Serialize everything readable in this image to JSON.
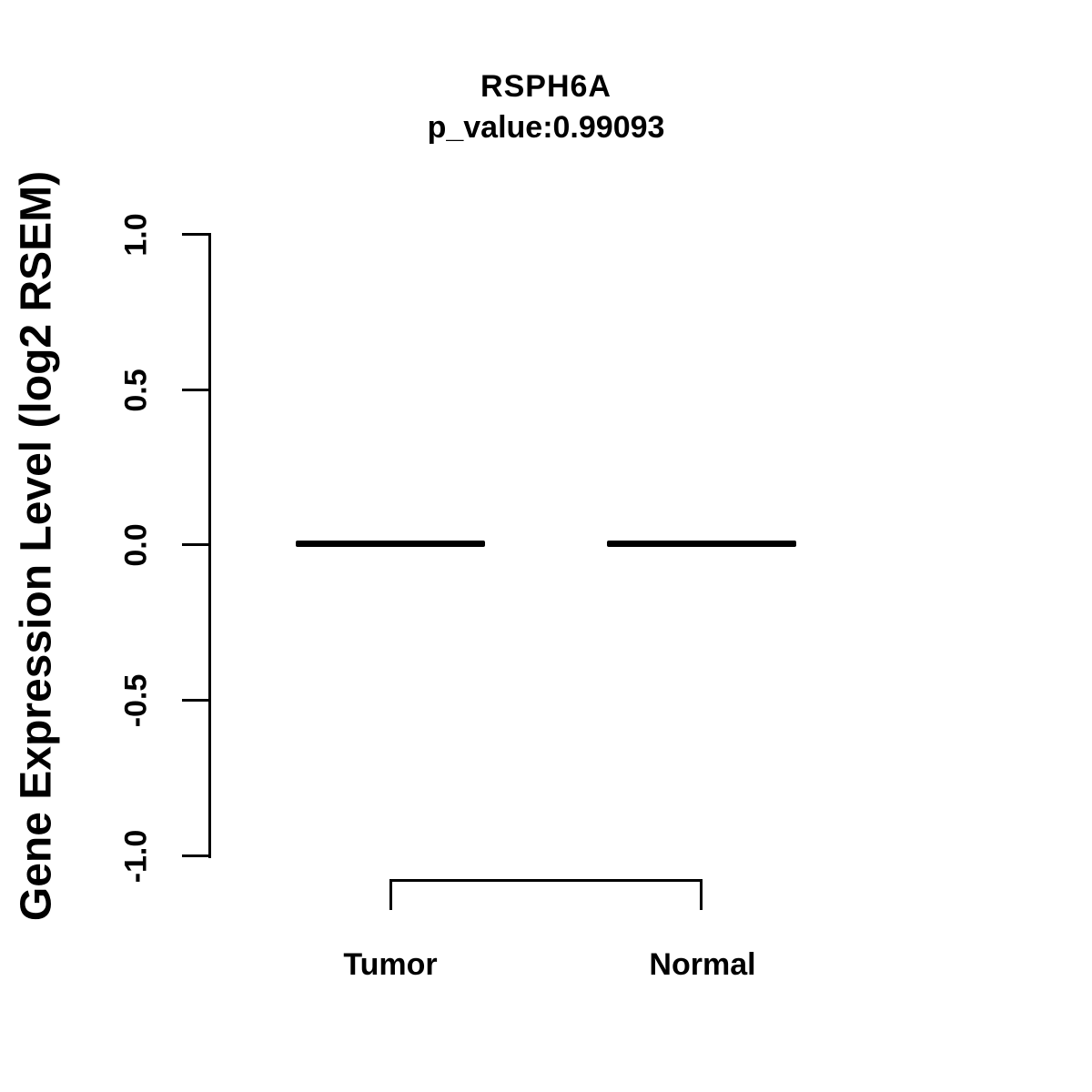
{
  "title": "RSPH6A",
  "subtitle": "p_value:0.99093",
  "y_axis": {
    "label": "Gene Expression Level (log2 RSEM)",
    "tick_labels": [
      "1.0",
      "0.5",
      "0.0",
      "-0.5",
      "-1.0"
    ]
  },
  "x_axis": {
    "group_labels": [
      "Tumor",
      "Normal"
    ]
  },
  "colors": {
    "foreground": "#000000",
    "background": "#ffffff"
  },
  "chart_data": {
    "type": "boxplot",
    "title": "RSPH6A",
    "subtitle": "p_value:0.99093",
    "xlabel": "",
    "ylabel": "Gene Expression Level (log2 RSEM)",
    "categories": [
      "Tumor",
      "Normal"
    ],
    "series": [
      {
        "name": "Tumor",
        "median": 0.0,
        "q1": 0.0,
        "q3": 0.0,
        "whisker_low": 0.0,
        "whisker_high": 0.0
      },
      {
        "name": "Normal",
        "median": 0.0,
        "q1": 0.0,
        "q3": 0.0,
        "whisker_low": 0.0,
        "whisker_high": 0.0
      }
    ],
    "p_value": 0.99093,
    "ylim": [
      -1.0,
      1.0
    ],
    "yticks": [
      1.0,
      0.5,
      0.0,
      -0.5,
      -1.0
    ],
    "grid": false,
    "legend_position": "none",
    "annotations": [
      "comparison bracket connecting Tumor and Normal below the plot"
    ]
  }
}
